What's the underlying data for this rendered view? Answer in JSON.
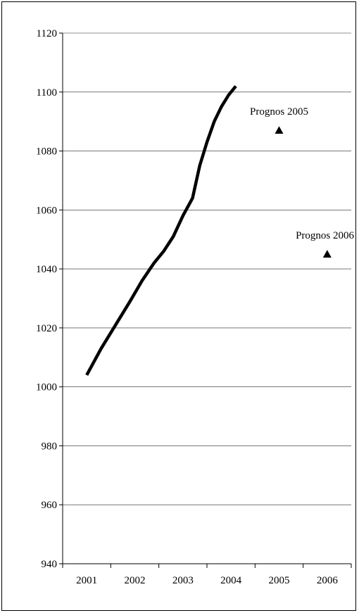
{
  "chart_data": {
    "type": "line",
    "title": "",
    "xlabel": "",
    "ylabel": "",
    "categories": [
      "2001",
      "2002",
      "2003",
      "2004",
      "2005",
      "2006"
    ],
    "ylim": [
      940,
      1120
    ],
    "yticks": [
      940,
      960,
      980,
      1000,
      1020,
      1040,
      1060,
      1080,
      1100,
      1120
    ],
    "grid": true,
    "legend": "none",
    "line_color": "#000000",
    "series": [
      {
        "type": "line",
        "x": [
          2001.0,
          2001.3,
          2001.6,
          2001.9,
          2002.15,
          2002.4,
          2002.6,
          2002.8,
          2003.0,
          2003.2,
          2003.35,
          2003.5,
          2003.65,
          2003.8,
          2003.95,
          2004.1
        ],
        "values": [
          1004,
          1013,
          1021,
          1029,
          1036,
          1042,
          1046,
          1051,
          1058,
          1064,
          1075,
          1083,
          1090,
          1095,
          1099,
          1102
        ]
      }
    ],
    "points": [
      {
        "label": "Prognos 2005",
        "x": 2005,
        "value": 1087
      },
      {
        "label": "Prognos 2006",
        "x": 2006,
        "value": 1045
      }
    ]
  }
}
